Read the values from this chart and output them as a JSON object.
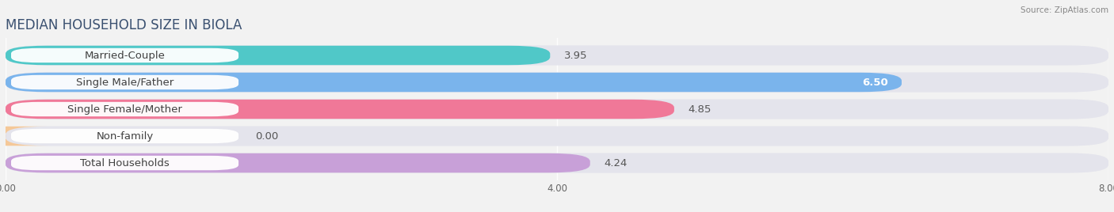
{
  "title": "MEDIAN HOUSEHOLD SIZE IN BIOLA",
  "source": "Source: ZipAtlas.com",
  "categories": [
    "Married-Couple",
    "Single Male/Father",
    "Single Female/Mother",
    "Non-family",
    "Total Households"
  ],
  "values": [
    3.95,
    6.5,
    4.85,
    0.0,
    4.24
  ],
  "bar_colors": [
    "#50c8c8",
    "#7ab4ec",
    "#f07898",
    "#f5c898",
    "#c8a0d8"
  ],
  "background_color": "#f2f2f2",
  "bar_bg_color": "#e4e4ec",
  "row_bg_color": "#ebebeb",
  "xlim": [
    0,
    8.0
  ],
  "xtick_labels": [
    "0.00",
    "4.00",
    "8.00"
  ],
  "xtick_vals": [
    0.0,
    4.0,
    8.0
  ],
  "title_fontsize": 12,
  "label_fontsize": 9.5,
  "value_fontsize": 9.5
}
